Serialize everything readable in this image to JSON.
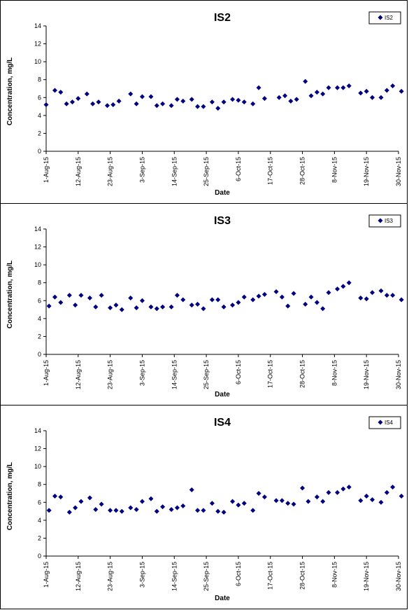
{
  "chart_data": [
    {
      "type": "scatter",
      "title": "IS2",
      "xlabel": "Date",
      "ylabel": "Concentration, mg/L",
      "ylim": [
        0,
        14
      ],
      "yticks": [
        "0",
        "2",
        "4",
        "6",
        "8",
        "10",
        "12",
        "14"
      ],
      "xlim": [
        "2015-08-01",
        "2015-11-30"
      ],
      "xticks": [
        "1-Aug-15",
        "12-Aug-15",
        "23-Aug-15",
        "3-Sep-15",
        "14-Sep-15",
        "25-Sep-15",
        "6-Oct-15",
        "17-Oct-15",
        "28-Oct-15",
        "8-Nov-15",
        "19-Nov-15",
        "30-Nov-15"
      ],
      "grid": false,
      "legend": "top-right",
      "series": [
        {
          "name": "IS2",
          "color": "#000080",
          "marker": "diamond",
          "points": [
            [
              "2015-08-01",
              5.2
            ],
            [
              "2015-08-04",
              6.8
            ],
            [
              "2015-08-06",
              6.6
            ],
            [
              "2015-08-08",
              5.3
            ],
            [
              "2015-08-10",
              5.5
            ],
            [
              "2015-08-12",
              5.9
            ],
            [
              "2015-08-15",
              6.4
            ],
            [
              "2015-08-17",
              5.3
            ],
            [
              "2015-08-19",
              5.5
            ],
            [
              "2015-08-22",
              5.1
            ],
            [
              "2015-08-24",
              5.2
            ],
            [
              "2015-08-26",
              5.6
            ],
            [
              "2015-08-30",
              6.4
            ],
            [
              "2015-09-01",
              5.3
            ],
            [
              "2015-09-03",
              6.1
            ],
            [
              "2015-09-06",
              6.1
            ],
            [
              "2015-09-08",
              5.1
            ],
            [
              "2015-09-10",
              5.3
            ],
            [
              "2015-09-13",
              5.1
            ],
            [
              "2015-09-15",
              5.8
            ],
            [
              "2015-09-17",
              5.6
            ],
            [
              "2015-09-20",
              5.8
            ],
            [
              "2015-09-22",
              5.0
            ],
            [
              "2015-09-24",
              5.0
            ],
            [
              "2015-09-27",
              5.5
            ],
            [
              "2015-09-29",
              4.8
            ],
            [
              "2015-10-01",
              5.5
            ],
            [
              "2015-10-04",
              5.8
            ],
            [
              "2015-10-06",
              5.7
            ],
            [
              "2015-10-08",
              5.5
            ],
            [
              "2015-10-11",
              5.3
            ],
            [
              "2015-10-13",
              7.1
            ],
            [
              "2015-10-15",
              5.9
            ],
            [
              "2015-10-20",
              6.0
            ],
            [
              "2015-10-22",
              6.2
            ],
            [
              "2015-10-24",
              5.6
            ],
            [
              "2015-10-26",
              5.8
            ],
            [
              "2015-10-29",
              7.8
            ],
            [
              "2015-10-31",
              6.2
            ],
            [
              "2015-11-02",
              6.6
            ],
            [
              "2015-11-04",
              6.4
            ],
            [
              "2015-11-06",
              7.1
            ],
            [
              "2015-11-09",
              7.1
            ],
            [
              "2015-11-11",
              7.1
            ],
            [
              "2015-11-13",
              7.3
            ],
            [
              "2015-11-17",
              6.5
            ],
            [
              "2015-11-19",
              6.7
            ],
            [
              "2015-11-21",
              6.0
            ],
            [
              "2015-11-24",
              6.0
            ],
            [
              "2015-11-26",
              6.8
            ],
            [
              "2015-11-28",
              7.3
            ],
            [
              "2015-12-01",
              6.7
            ]
          ]
        }
      ]
    },
    {
      "type": "scatter",
      "title": "IS3",
      "xlabel": "Date",
      "ylabel": "Concentration, mg/L",
      "ylim": [
        0,
        14
      ],
      "yticks": [
        "0",
        "2",
        "4",
        "6",
        "8",
        "10",
        "12",
        "14"
      ],
      "xlim": [
        "2015-08-01",
        "2015-11-30"
      ],
      "xticks": [
        "1-Aug-15",
        "12-Aug-15",
        "23-Aug-15",
        "3-Sep-15",
        "14-Sep-15",
        "25-Sep-15",
        "6-Oct-15",
        "17-Oct-15",
        "28-Oct-15",
        "8-Nov-15",
        "19-Nov-15",
        "30-Nov-15"
      ],
      "grid": false,
      "legend": "top-right",
      "series": [
        {
          "name": "IS3",
          "color": "#000080",
          "marker": "diamond",
          "points": [
            [
              "2015-08-02",
              5.4
            ],
            [
              "2015-08-04",
              6.4
            ],
            [
              "2015-08-06",
              5.8
            ],
            [
              "2015-08-09",
              6.6
            ],
            [
              "2015-08-11",
              5.5
            ],
            [
              "2015-08-13",
              6.6
            ],
            [
              "2015-08-16",
              6.3
            ],
            [
              "2015-08-18",
              5.3
            ],
            [
              "2015-08-20",
              6.6
            ],
            [
              "2015-08-23",
              5.2
            ],
            [
              "2015-08-25",
              5.5
            ],
            [
              "2015-08-27",
              5.0
            ],
            [
              "2015-08-30",
              6.3
            ],
            [
              "2015-09-01",
              5.2
            ],
            [
              "2015-09-03",
              6.0
            ],
            [
              "2015-09-06",
              5.3
            ],
            [
              "2015-09-08",
              5.1
            ],
            [
              "2015-09-10",
              5.3
            ],
            [
              "2015-09-13",
              5.3
            ],
            [
              "2015-09-15",
              6.6
            ],
            [
              "2015-09-17",
              6.1
            ],
            [
              "2015-09-20",
              5.5
            ],
            [
              "2015-09-22",
              5.6
            ],
            [
              "2015-09-24",
              5.1
            ],
            [
              "2015-09-27",
              6.1
            ],
            [
              "2015-09-29",
              6.1
            ],
            [
              "2015-10-01",
              5.3
            ],
            [
              "2015-10-04",
              5.5
            ],
            [
              "2015-10-06",
              5.8
            ],
            [
              "2015-10-08",
              6.4
            ],
            [
              "2015-10-11",
              6.1
            ],
            [
              "2015-10-13",
              6.5
            ],
            [
              "2015-10-15",
              6.7
            ],
            [
              "2015-10-19",
              7.0
            ],
            [
              "2015-10-21",
              6.4
            ],
            [
              "2015-10-23",
              5.4
            ],
            [
              "2015-10-25",
              6.8
            ],
            [
              "2015-10-29",
              5.6
            ],
            [
              "2015-10-31",
              6.4
            ],
            [
              "2015-11-02",
              5.8
            ],
            [
              "2015-11-04",
              5.1
            ],
            [
              "2015-11-06",
              6.9
            ],
            [
              "2015-11-09",
              7.3
            ],
            [
              "2015-11-11",
              7.6
            ],
            [
              "2015-11-13",
              8.0
            ],
            [
              "2015-11-17",
              6.3
            ],
            [
              "2015-11-19",
              6.2
            ],
            [
              "2015-11-21",
              6.9
            ],
            [
              "2015-11-24",
              7.1
            ],
            [
              "2015-11-26",
              6.6
            ],
            [
              "2015-11-28",
              6.6
            ],
            [
              "2015-12-01",
              6.1
            ]
          ]
        }
      ]
    },
    {
      "type": "scatter",
      "title": "IS4",
      "xlabel": "Date",
      "ylabel": "Concentration, mg/L",
      "ylim": [
        0,
        14
      ],
      "yticks": [
        "0",
        "2",
        "4",
        "6",
        "8",
        "10",
        "12",
        "14"
      ],
      "xlim": [
        "2015-08-01",
        "2015-11-30"
      ],
      "xticks": [
        "1-Aug-15",
        "12-Aug-15",
        "23-Aug-15",
        "3-Sep-15",
        "14-Sep-15",
        "25-Sep-15",
        "6-Oct-15",
        "17-Oct-15",
        "28-Oct-15",
        "8-Nov-15",
        "19-Nov-15",
        "30-Nov-15"
      ],
      "grid": false,
      "legend": "top-right",
      "series": [
        {
          "name": "IS4",
          "color": "#000080",
          "marker": "diamond",
          "points": [
            [
              "2015-08-02",
              5.1
            ],
            [
              "2015-08-04",
              6.7
            ],
            [
              "2015-08-06",
              6.6
            ],
            [
              "2015-08-09",
              4.9
            ],
            [
              "2015-08-11",
              5.4
            ],
            [
              "2015-08-13",
              6.1
            ],
            [
              "2015-08-16",
              6.5
            ],
            [
              "2015-08-18",
              5.2
            ],
            [
              "2015-08-20",
              5.8
            ],
            [
              "2015-08-23",
              5.1
            ],
            [
              "2015-08-25",
              5.1
            ],
            [
              "2015-08-27",
              5.0
            ],
            [
              "2015-08-30",
              5.4
            ],
            [
              "2015-09-01",
              5.2
            ],
            [
              "2015-09-03",
              6.1
            ],
            [
              "2015-09-06",
              6.4
            ],
            [
              "2015-09-08",
              5.0
            ],
            [
              "2015-09-10",
              5.5
            ],
            [
              "2015-09-13",
              5.2
            ],
            [
              "2015-09-15",
              5.4
            ],
            [
              "2015-09-17",
              5.6
            ],
            [
              "2015-09-20",
              7.4
            ],
            [
              "2015-09-22",
              5.1
            ],
            [
              "2015-09-24",
              5.1
            ],
            [
              "2015-09-27",
              5.9
            ],
            [
              "2015-09-29",
              5.0
            ],
            [
              "2015-10-01",
              4.9
            ],
            [
              "2015-10-04",
              6.1
            ],
            [
              "2015-10-06",
              5.7
            ],
            [
              "2015-10-08",
              5.9
            ],
            [
              "2015-10-11",
              5.1
            ],
            [
              "2015-10-13",
              7.0
            ],
            [
              "2015-10-15",
              6.6
            ],
            [
              "2015-10-19",
              6.2
            ],
            [
              "2015-10-21",
              6.2
            ],
            [
              "2015-10-23",
              5.9
            ],
            [
              "2015-10-25",
              5.8
            ],
            [
              "2015-10-28",
              7.6
            ],
            [
              "2015-10-30",
              6.1
            ],
            [
              "2015-11-02",
              6.6
            ],
            [
              "2015-11-04",
              6.1
            ],
            [
              "2015-11-06",
              7.1
            ],
            [
              "2015-11-09",
              7.1
            ],
            [
              "2015-11-11",
              7.5
            ],
            [
              "2015-11-13",
              7.7
            ],
            [
              "2015-11-17",
              6.2
            ],
            [
              "2015-11-19",
              6.7
            ],
            [
              "2015-11-21",
              6.3
            ],
            [
              "2015-11-24",
              6.0
            ],
            [
              "2015-11-26",
              7.1
            ],
            [
              "2015-11-28",
              7.7
            ],
            [
              "2015-12-01",
              6.7
            ]
          ]
        }
      ]
    }
  ]
}
